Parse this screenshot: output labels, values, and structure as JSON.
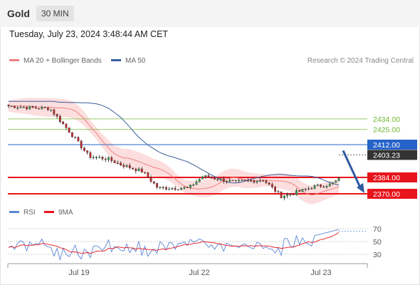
{
  "header": {
    "symbol": "Gold",
    "timeframe": "30 MIN"
  },
  "timestamp": "Tuesday, July 23, 2024 3:48:44 AM CET",
  "legend_main": [
    {
      "label": "MA 20 + Bollinger Bands",
      "color": "#f08080"
    },
    {
      "label": "MA 50",
      "color": "#3b5f9a"
    }
  ],
  "credit": "Research © 2024 Trading Central",
  "legend_rsi": [
    {
      "label": "RSI",
      "color": "#5b86d6"
    },
    {
      "label": "9MA",
      "color": "#e8141c"
    }
  ],
  "colors": {
    "resistance": "#6fb52c",
    "pivot": "#2563c9",
    "support": "#e8141c",
    "current": "#333333",
    "arrow": "#2e5aa0",
    "bull": "#3aa655",
    "bear": "#c62828",
    "band": "#fbd3d3"
  },
  "chart_data": [
    {
      "type": "candlestick",
      "title": "Gold",
      "timeframe": "30 MIN",
      "x_tick_labels": [
        "Jul 19",
        "Jul 22",
        "Jul 23"
      ],
      "series": [
        {
          "name": "MA 20 + Bollinger Bands",
          "x": [
            "Jul 19",
            "Jul 22",
            "Jul 23"
          ],
          "y": [
            2445,
            2399,
            2396
          ]
        },
        {
          "name": "MA 50",
          "x": [
            "Jul 19",
            "Jul 22",
            "Jul 23"
          ],
          "y": [
            2455,
            2418,
            2399
          ]
        }
      ],
      "price_path": {
        "x": [
          "Jul 19",
          "Jul 22",
          "Jul 23"
        ],
        "close": [
          2440,
          2412,
          2403
        ]
      },
      "levels": {
        "resistance": [
          "2434.00",
          "2425.00"
        ],
        "pivot": "2412.00",
        "current": "2403.23",
        "support": [
          "2384.00",
          "2370.00"
        ]
      },
      "forecast": {
        "direction": "down",
        "target": 2370
      },
      "ylim": [
        2350,
        2480
      ]
    },
    {
      "type": "line",
      "title": "RSI",
      "y_tick_labels": [
        "70",
        "50",
        "30"
      ],
      "ylim": [
        15,
        80
      ],
      "x_tick_labels": [
        "Jul 19",
        "Jul 22",
        "Jul 23"
      ],
      "series": [
        {
          "name": "RSI",
          "x": [
            "Jul 19",
            "Jul 22",
            "Jul 23"
          ],
          "y": [
            37,
            51,
            66
          ]
        },
        {
          "name": "9MA",
          "x": [
            "Jul 19",
            "Jul 22",
            "Jul 23"
          ],
          "y": [
            38,
            50,
            56
          ]
        }
      ]
    }
  ]
}
